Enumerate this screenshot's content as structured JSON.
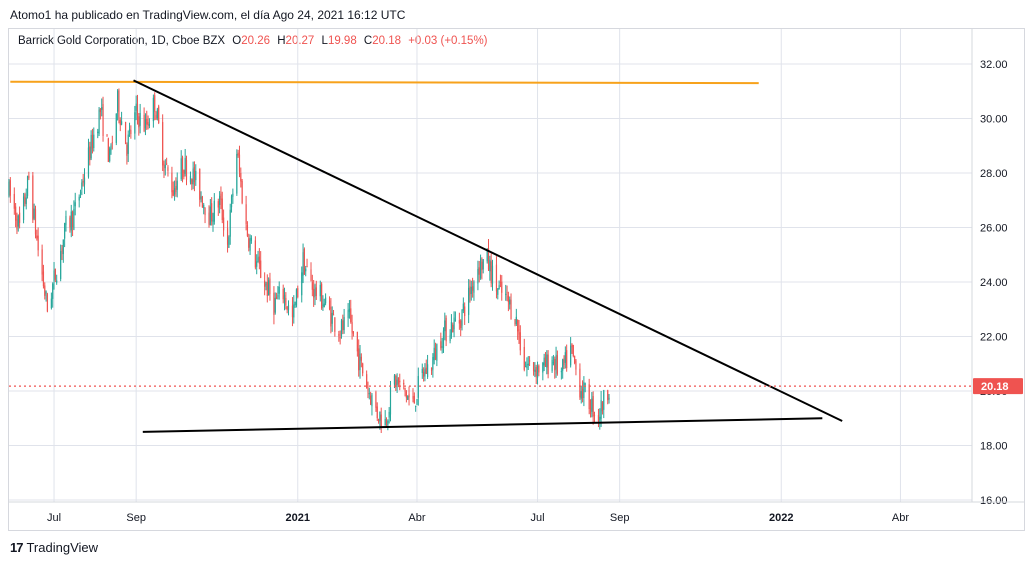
{
  "header": {
    "published": "Atomo1 ha publicado en TradingView.com, el día Ago 24, 2021 16:12 UTC"
  },
  "legend": {
    "symbol": "Barrick Gold Corporation, 1D, Cboe BZX",
    "o_label": "O",
    "o": "20.26",
    "h_label": "H",
    "h": "20.27",
    "l_label": "L",
    "l": "19.98",
    "c_label": "C",
    "c": "20.18",
    "change": "+0.03 (+0.15%)"
  },
  "brand": {
    "logo": "17",
    "name": "TradingView"
  },
  "colors": {
    "up": "#26a69a",
    "down": "#ef5350",
    "resistance": "#f7a21b",
    "trendline": "#000000",
    "last_price": "#ef5350",
    "grid": "#e0e3eb"
  },
  "chart_data": {
    "type": "candlestick",
    "title": "Barrick Gold Corporation, 1D, Cboe BZX",
    "y_ticks": [
      "32.00",
      "30.00",
      "28.00",
      "26.00",
      "24.00",
      "22.00",
      "20.00",
      "18.00",
      "16.00"
    ],
    "ylim": [
      16,
      32.5
    ],
    "x_ticks": [
      "Jul",
      "Sep",
      "2021",
      "Abr",
      "Jul",
      "Sep",
      "2022",
      "Abr"
    ],
    "x_tick_dates": [
      "2020-07-01",
      "2020-09-01",
      "2021-01-01",
      "2021-04-01",
      "2021-07-01",
      "2021-09-01",
      "2022-01-01",
      "2022-04-01"
    ],
    "xlim": [
      "2020-05-28",
      "2022-05-25"
    ],
    "last_price": 20.18,
    "last_price_label": "20.18",
    "price_path": [
      [
        "2020-05-28",
        27.3
      ],
      [
        "2020-06-05",
        26.0
      ],
      [
        "2020-06-12",
        27.8
      ],
      [
        "2020-06-19",
        25.2
      ],
      [
        "2020-06-26",
        23.0
      ],
      [
        "2020-07-03",
        24.5
      ],
      [
        "2020-07-10",
        26.0
      ],
      [
        "2020-07-17",
        26.6
      ],
      [
        "2020-07-24",
        28.0
      ],
      [
        "2020-07-31",
        29.4
      ],
      [
        "2020-08-05",
        30.3
      ],
      [
        "2020-08-12",
        28.5
      ],
      [
        "2020-08-18",
        30.6
      ],
      [
        "2020-08-25",
        29.0
      ],
      [
        "2020-09-01",
        30.2
      ],
      [
        "2020-09-08",
        29.7
      ],
      [
        "2020-09-15",
        30.6
      ],
      [
        "2020-09-22",
        28.4
      ],
      [
        "2020-09-29",
        27.4
      ],
      [
        "2020-10-06",
        28.3
      ],
      [
        "2020-10-13",
        28.0
      ],
      [
        "2020-10-20",
        27.2
      ],
      [
        "2020-10-27",
        26.4
      ],
      [
        "2020-11-03",
        27.0
      ],
      [
        "2020-11-09",
        25.4
      ],
      [
        "2020-11-16",
        28.8
      ],
      [
        "2020-11-23",
        26.0
      ],
      [
        "2020-11-30",
        24.8
      ],
      [
        "2020-12-07",
        24.0
      ],
      [
        "2020-12-14",
        23.2
      ],
      [
        "2020-12-21",
        23.6
      ],
      [
        "2020-12-28",
        22.6
      ],
      [
        "2021-01-05",
        24.8
      ],
      [
        "2021-01-12",
        23.8
      ],
      [
        "2021-01-19",
        23.4
      ],
      [
        "2021-01-26",
        22.8
      ],
      [
        "2021-02-02",
        22.2
      ],
      [
        "2021-02-09",
        22.6
      ],
      [
        "2021-02-16",
        21.2
      ],
      [
        "2021-02-23",
        20.1
      ],
      [
        "2021-03-02",
        19.2
      ],
      [
        "2021-03-08",
        18.9
      ],
      [
        "2021-03-15",
        20.4
      ],
      [
        "2021-03-22",
        20.0
      ],
      [
        "2021-03-29",
        19.5
      ],
      [
        "2021-04-05",
        20.6
      ],
      [
        "2021-04-12",
        21.0
      ],
      [
        "2021-04-19",
        22.0
      ],
      [
        "2021-04-26",
        22.4
      ],
      [
        "2021-05-03",
        22.6
      ],
      [
        "2021-05-10",
        23.5
      ],
      [
        "2021-05-17",
        24.6
      ],
      [
        "2021-05-24",
        24.8
      ],
      [
        "2021-05-31",
        23.8
      ],
      [
        "2021-06-07",
        23.4
      ],
      [
        "2021-06-14",
        22.8
      ],
      [
        "2021-06-21",
        21.0
      ],
      [
        "2021-06-28",
        20.9
      ],
      [
        "2021-07-05",
        20.8
      ],
      [
        "2021-07-12",
        21.2
      ],
      [
        "2021-07-19",
        20.6
      ],
      [
        "2021-07-26",
        21.5
      ],
      [
        "2021-08-02",
        20.2
      ],
      [
        "2021-08-09",
        19.6
      ],
      [
        "2021-08-16",
        19.1
      ],
      [
        "2021-08-24",
        20.2
      ]
    ],
    "annotations": [
      {
        "type": "horizontal_line",
        "color": "orange",
        "from": [
          "2020-05-29",
          31.35
        ],
        "to": [
          "2021-12-15",
          31.3
        ]
      },
      {
        "type": "trendline",
        "color": "black",
        "from": [
          "2020-08-30",
          31.4
        ],
        "to": [
          "2022-02-16",
          18.9
        ]
      },
      {
        "type": "trendline",
        "color": "black",
        "from": [
          "2020-09-06",
          18.5
        ],
        "to": [
          "2022-02-01",
          19.0
        ]
      },
      {
        "type": "horizontal_dotted_line",
        "color": "red",
        "price": 20.18
      }
    ]
  }
}
